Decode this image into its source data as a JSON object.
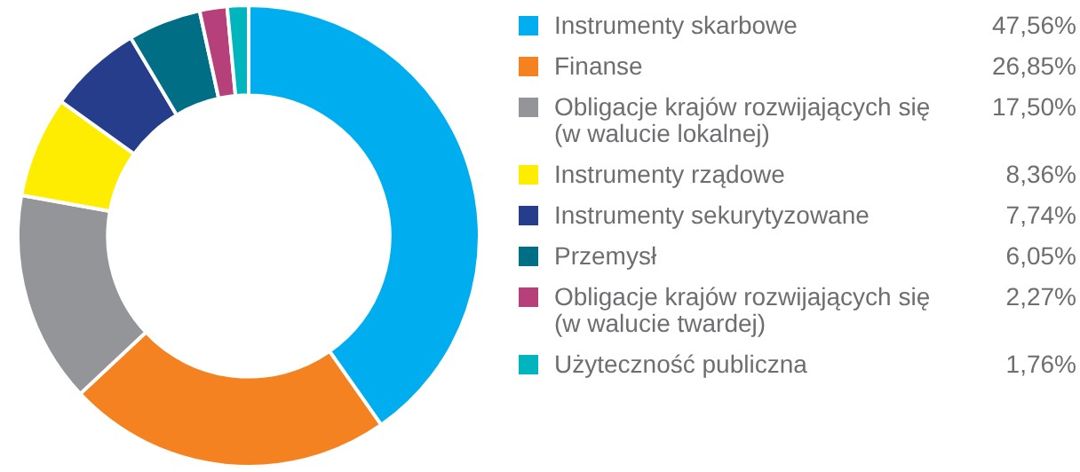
{
  "chart_data": {
    "type": "donut",
    "legend": "right",
    "categories": [
      "Instrumenty skarbowe",
      "Finanse",
      "Obligacje krajów rozwijających się (w walucie lokalnej)",
      "Instrumenty rządowe",
      "Instrumenty sekurytyzowane",
      "Przemysł",
      "Obligacje krajów rozwijających się (w walucie twardej)",
      "Użyteczność publiczna"
    ],
    "values": [
      47.56,
      26.85,
      17.5,
      8.36,
      7.74,
      6.05,
      2.27,
      1.76
    ],
    "value_labels": [
      "47,56%",
      "26,85%",
      "17,50%",
      "8,36%",
      "7,74%",
      "6,05%",
      "2,27%",
      "1,76%"
    ],
    "colors": [
      "#00aeef",
      "#f58220",
      "#939598",
      "#ffed00",
      "#253d8b",
      "#006f86",
      "#b5407a",
      "#00b5bd"
    ]
  }
}
